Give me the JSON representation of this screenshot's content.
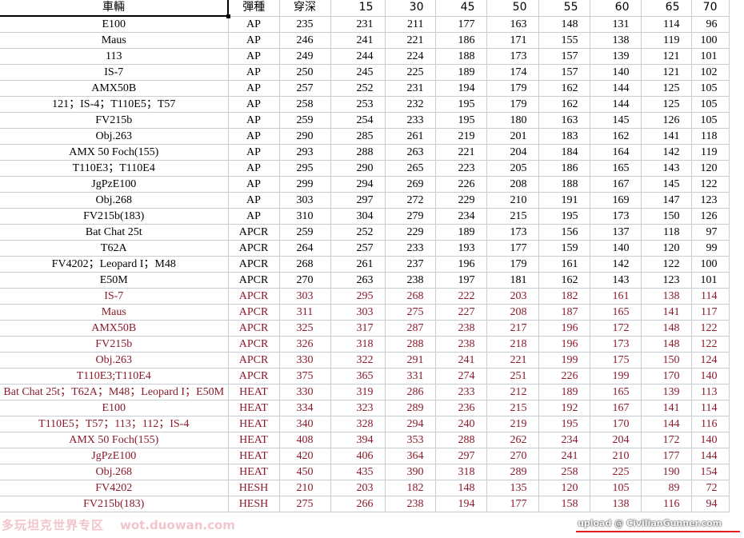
{
  "headers": [
    "車輛",
    "彈種",
    "穿深",
    "15",
    "30",
    "45",
    "50",
    "55",
    "60",
    "65",
    "70"
  ],
  "colors": {
    "normal": "#000000",
    "highlight": "#8b1a2a"
  },
  "rows": [
    {
      "red": false,
      "cells": [
        "E100",
        "AP",
        "235",
        "231",
        "211",
        "177",
        "163",
        "148",
        "131",
        "114",
        "96"
      ]
    },
    {
      "red": false,
      "cells": [
        "Maus",
        "AP",
        "246",
        "241",
        "221",
        "186",
        "171",
        "155",
        "138",
        "119",
        "100"
      ]
    },
    {
      "red": false,
      "cells": [
        "113",
        "AP",
        "249",
        "244",
        "224",
        "188",
        "173",
        "157",
        "139",
        "121",
        "101"
      ]
    },
    {
      "red": false,
      "cells": [
        "IS-7",
        "AP",
        "250",
        "245",
        "225",
        "189",
        "174",
        "157",
        "140",
        "121",
        "102"
      ]
    },
    {
      "red": false,
      "cells": [
        "AMX50B",
        "AP",
        "257",
        "252",
        "231",
        "194",
        "179",
        "162",
        "144",
        "125",
        "105"
      ]
    },
    {
      "red": false,
      "cells": [
        "121；IS-4；T110E5；T57",
        "AP",
        "258",
        "253",
        "232",
        "195",
        "179",
        "162",
        "144",
        "125",
        "105"
      ]
    },
    {
      "red": false,
      "cells": [
        "FV215b",
        "AP",
        "259",
        "254",
        "233",
        "195",
        "180",
        "163",
        "145",
        "126",
        "105"
      ]
    },
    {
      "red": false,
      "cells": [
        "Obj.263",
        "AP",
        "290",
        "285",
        "261",
        "219",
        "201",
        "183",
        "162",
        "141",
        "118"
      ]
    },
    {
      "red": false,
      "cells": [
        "AMX 50 Foch(155)",
        "AP",
        "293",
        "288",
        "263",
        "221",
        "204",
        "184",
        "164",
        "142",
        "119"
      ]
    },
    {
      "red": false,
      "cells": [
        "T110E3；T110E4",
        "AP",
        "295",
        "290",
        "265",
        "223",
        "205",
        "186",
        "165",
        "143",
        "120"
      ]
    },
    {
      "red": false,
      "cells": [
        "JgPzE100",
        "AP",
        "299",
        "294",
        "269",
        "226",
        "208",
        "188",
        "167",
        "145",
        "122"
      ]
    },
    {
      "red": false,
      "cells": [
        "Obj.268",
        "AP",
        "303",
        "297",
        "272",
        "229",
        "210",
        "191",
        "169",
        "147",
        "123"
      ]
    },
    {
      "red": false,
      "cells": [
        "FV215b(183)",
        "AP",
        "310",
        "304",
        "279",
        "234",
        "215",
        "195",
        "173",
        "150",
        "126"
      ]
    },
    {
      "red": false,
      "cells": [
        "Bat Chat 25t",
        "APCR",
        "259",
        "252",
        "229",
        "189",
        "173",
        "156",
        "137",
        "118",
        "97"
      ]
    },
    {
      "red": false,
      "cells": [
        "T62A",
        "APCR",
        "264",
        "257",
        "233",
        "193",
        "177",
        "159",
        "140",
        "120",
        "99"
      ]
    },
    {
      "red": false,
      "cells": [
        "FV4202；Leopard I；M48",
        "APCR",
        "268",
        "261",
        "237",
        "196",
        "179",
        "161",
        "142",
        "122",
        "100"
      ]
    },
    {
      "red": false,
      "cells": [
        "E50M",
        "APCR",
        "270",
        "263",
        "238",
        "197",
        "181",
        "162",
        "143",
        "123",
        "101"
      ]
    },
    {
      "red": true,
      "cells": [
        "IS-7",
        "APCR",
        "303",
        "295",
        "268",
        "222",
        "203",
        "182",
        "161",
        "138",
        "114"
      ]
    },
    {
      "red": true,
      "cells": [
        "Maus",
        "APCR",
        "311",
        "303",
        "275",
        "227",
        "208",
        "187",
        "165",
        "141",
        "117"
      ]
    },
    {
      "red": true,
      "cells": [
        "AMX50B",
        "APCR",
        "325",
        "317",
        "287",
        "238",
        "217",
        "196",
        "172",
        "148",
        "122"
      ]
    },
    {
      "red": true,
      "cells": [
        "FV215b",
        "APCR",
        "326",
        "318",
        "288",
        "238",
        "218",
        "196",
        "173",
        "148",
        "122"
      ]
    },
    {
      "red": true,
      "cells": [
        "Obj.263",
        "APCR",
        "330",
        "322",
        "291",
        "241",
        "221",
        "199",
        "175",
        "150",
        "124"
      ]
    },
    {
      "red": true,
      "cells": [
        "T110E3;T110E4",
        "APCR",
        "375",
        "365",
        "331",
        "274",
        "251",
        "226",
        "199",
        "170",
        "140"
      ]
    },
    {
      "red": true,
      "cells": [
        "Bat Chat 25t；T62A；M48；Leopard I；E50M",
        "HEAT",
        "330",
        "319",
        "286",
        "233",
        "212",
        "189",
        "165",
        "139",
        "113"
      ]
    },
    {
      "red": true,
      "cells": [
        "E100",
        "HEAT",
        "334",
        "323",
        "289",
        "236",
        "215",
        "192",
        "167",
        "141",
        "114"
      ]
    },
    {
      "red": true,
      "cells": [
        "T110E5；T57；113；112；IS-4",
        "HEAT",
        "340",
        "328",
        "294",
        "240",
        "219",
        "195",
        "170",
        "144",
        "116"
      ]
    },
    {
      "red": true,
      "cells": [
        "AMX 50 Foch(155)",
        "HEAT",
        "408",
        "394",
        "353",
        "288",
        "262",
        "234",
        "204",
        "172",
        "140"
      ]
    },
    {
      "red": true,
      "cells": [
        "JgPzE100",
        "HEAT",
        "420",
        "406",
        "364",
        "297",
        "270",
        "241",
        "210",
        "177",
        "144"
      ]
    },
    {
      "red": true,
      "cells": [
        "Obj.268",
        "HEAT",
        "450",
        "435",
        "390",
        "318",
        "289",
        "258",
        "225",
        "190",
        "154"
      ]
    },
    {
      "red": true,
      "cells": [
        "FV4202",
        "HESH",
        "210",
        "203",
        "182",
        "148",
        "135",
        "120",
        "105",
        "89",
        "72"
      ]
    },
    {
      "red": true,
      "cells": [
        "FV215b(183)",
        "HESH",
        "275",
        "266",
        "238",
        "194",
        "177",
        "158",
        "138",
        "116",
        "94"
      ]
    }
  ],
  "watermarks": {
    "site_cn": "多玩坦克世界专区",
    "site": "wot.duowan.com",
    "upload": "upload @ CivilianGunner.com"
  }
}
